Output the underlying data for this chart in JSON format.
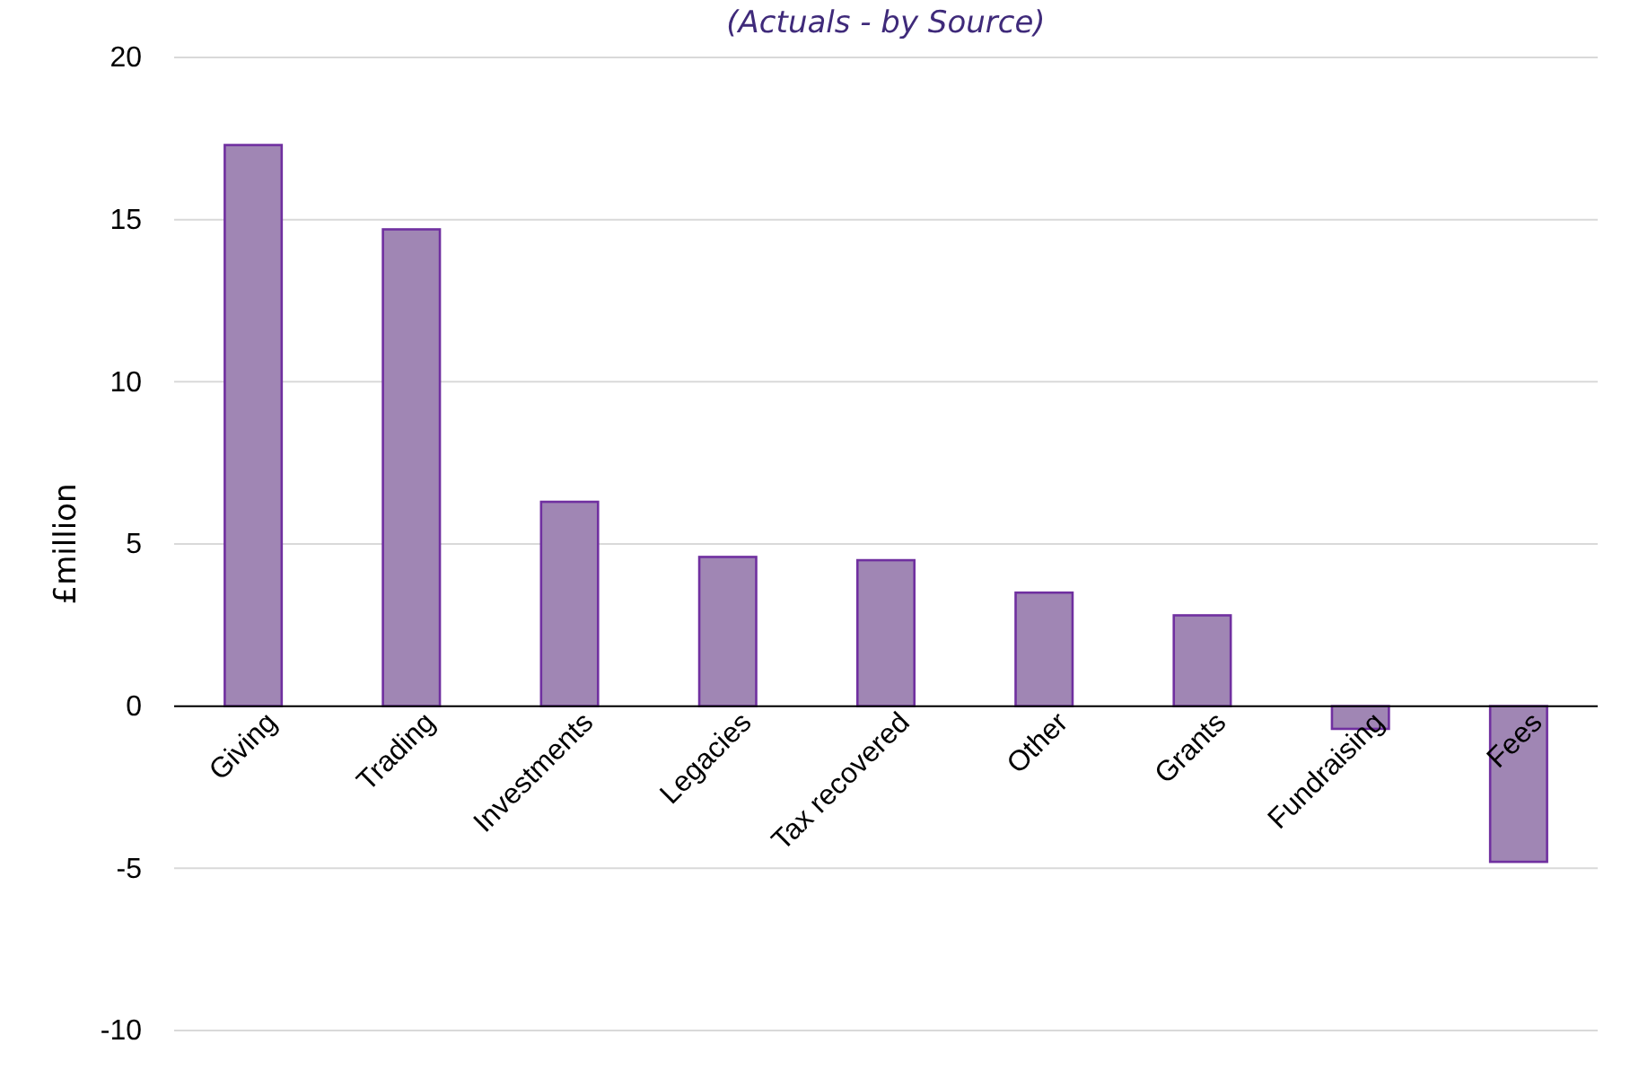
{
  "chart_data": {
    "type": "bar",
    "subtitle": "(Actuals - by Source)",
    "ylabel": "£million",
    "categories": [
      "Giving",
      "Trading",
      "Investments",
      "Legacies",
      "Tax recovered",
      "Other",
      "Grants",
      "Fundraising",
      "Fees"
    ],
    "values": [
      17.3,
      14.7,
      6.3,
      4.6,
      4.5,
      3.5,
      2.8,
      -0.7,
      -4.8
    ],
    "color": "#a086b4",
    "ylim": [
      -10,
      20
    ],
    "yticks": [
      -10,
      -5,
      0,
      5,
      10,
      15,
      20
    ],
    "grid": "y"
  }
}
